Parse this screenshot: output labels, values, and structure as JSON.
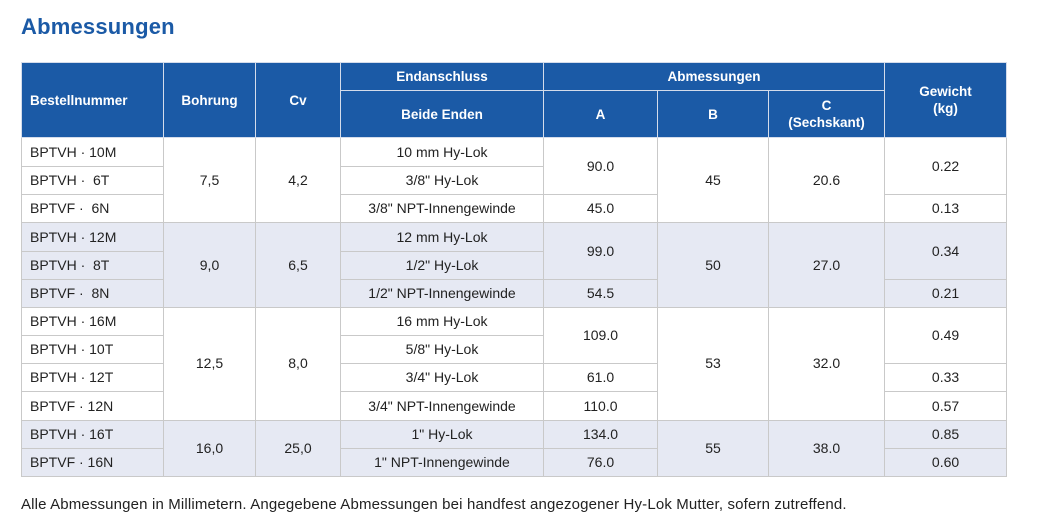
{
  "title": "Abmessungen",
  "headers": {
    "order_number": "Bestellnummer",
    "bore": "Bohrung",
    "cv": "Cv",
    "end_connection": "Endanschluss",
    "both_ends": "Beide Enden",
    "dimensions": "Abmessungen",
    "a": "A",
    "b": "B",
    "c_line1": "C",
    "c_line2": "(Sechskant)",
    "weight_line1": "Gewicht",
    "weight_line2": "(kg)"
  },
  "groups": [
    {
      "bore": "7,5",
      "cv": "4,2",
      "b": "45",
      "c": "20.6",
      "rows": [
        {
          "code": "BPTVH · 10M",
          "end": "10 mm Hy-Lok"
        },
        {
          "code": "BPTVH ·  6T",
          "end": "3/8\" Hy-Lok"
        },
        {
          "code": "BPTVF ·  6N",
          "end": "3/8\" NPT-Innengewinde"
        }
      ],
      "a": [
        "90.0",
        "45.0"
      ],
      "weight": [
        "0.22",
        "0.13"
      ]
    },
    {
      "bore": "9,0",
      "cv": "6,5",
      "b": "50",
      "c": "27.0",
      "rows": [
        {
          "code": "BPTVH · 12M",
          "end": "12 mm Hy-Lok"
        },
        {
          "code": "BPTVH ·  8T",
          "end": "1/2\" Hy-Lok"
        },
        {
          "code": "BPTVF ·  8N",
          "end": "1/2\" NPT-Innengewinde"
        }
      ],
      "a": [
        "99.0",
        "54.5"
      ],
      "weight": [
        "0.34",
        "0.21"
      ]
    },
    {
      "bore": "12,5",
      "cv": "8,0",
      "b": "53",
      "c": "32.0",
      "rows": [
        {
          "code": "BPTVH · 16M",
          "end": "16 mm Hy-Lok"
        },
        {
          "code": "BPTVH · 10T",
          "end": "5/8\" Hy-Lok"
        },
        {
          "code": "BPTVH · 12T",
          "end": "3/4\" Hy-Lok"
        },
        {
          "code": "BPTVF · 12N",
          "end": "3/4\" NPT-Innengewinde"
        }
      ],
      "a": [
        "109.0",
        "61.0",
        "110.0"
      ],
      "weight": [
        "0.49",
        "0.33",
        "0.57"
      ]
    },
    {
      "bore": "16,0",
      "cv": "25,0",
      "b": "55",
      "c": "38.0",
      "rows": [
        {
          "code": "BPTVH · 16T",
          "end": "1\" Hy-Lok"
        },
        {
          "code": "BPTVF · 16N",
          "end": "1\" NPT-Innengewinde"
        }
      ],
      "a": [
        "134.0",
        "76.0"
      ],
      "weight": [
        "0.85",
        "0.60"
      ]
    }
  ],
  "footnote": "Alle Abmessungen in Millimetern. Angegebene Abmessungen bei handfest angezogener Hy-Lok Mutter, sofern zutreffend.",
  "colors": {
    "header_bg": "#1b5aa6",
    "title": "#1b5aa6",
    "shaded_row": "#e6e9f3"
  }
}
